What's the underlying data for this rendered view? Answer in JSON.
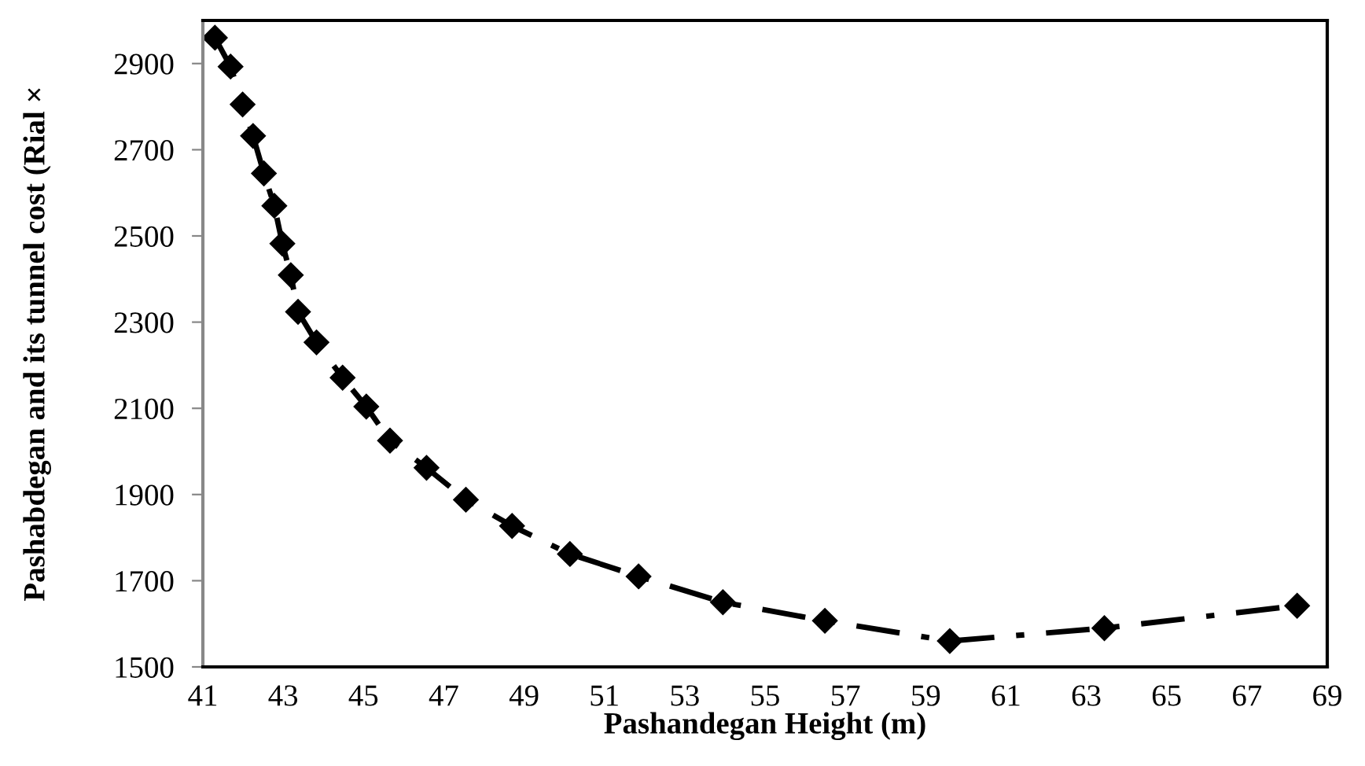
{
  "chart_data": {
    "type": "line",
    "xlabel": "Pashandegan Height (m)",
    "ylabel": "Pashabdegan and its tunnel cost (Rial ×",
    "xlim": [
      41,
      69
    ],
    "xticks": [
      41,
      43,
      45,
      47,
      49,
      51,
      53,
      55,
      57,
      59,
      61,
      63,
      65,
      67,
      69
    ],
    "ylim": [
      1500,
      3000
    ],
    "yticks": [
      1500,
      1700,
      1900,
      2100,
      2300,
      2500,
      2700,
      2900
    ],
    "grid": false,
    "legend": false,
    "marker": "diamond",
    "line_style": "dashdot",
    "series": [
      {
        "color": "#000000",
        "x": [
          41.3,
          41.69,
          41.99,
          42.25,
          42.52,
          42.78,
          42.98,
          43.19,
          43.37,
          43.83,
          44.48,
          45.07,
          45.66,
          46.57,
          47.55,
          48.7,
          50.14,
          51.85,
          53.95,
          56.49,
          59.6,
          63.45,
          68.25
        ],
        "values": [
          2960,
          2893,
          2805,
          2732,
          2645,
          2570,
          2482,
          2409,
          2324,
          2253,
          2171,
          2104,
          2025,
          1962,
          1888,
          1827,
          1762,
          1710,
          1650,
          1607,
          1560,
          1590,
          1642
        ]
      }
    ]
  }
}
